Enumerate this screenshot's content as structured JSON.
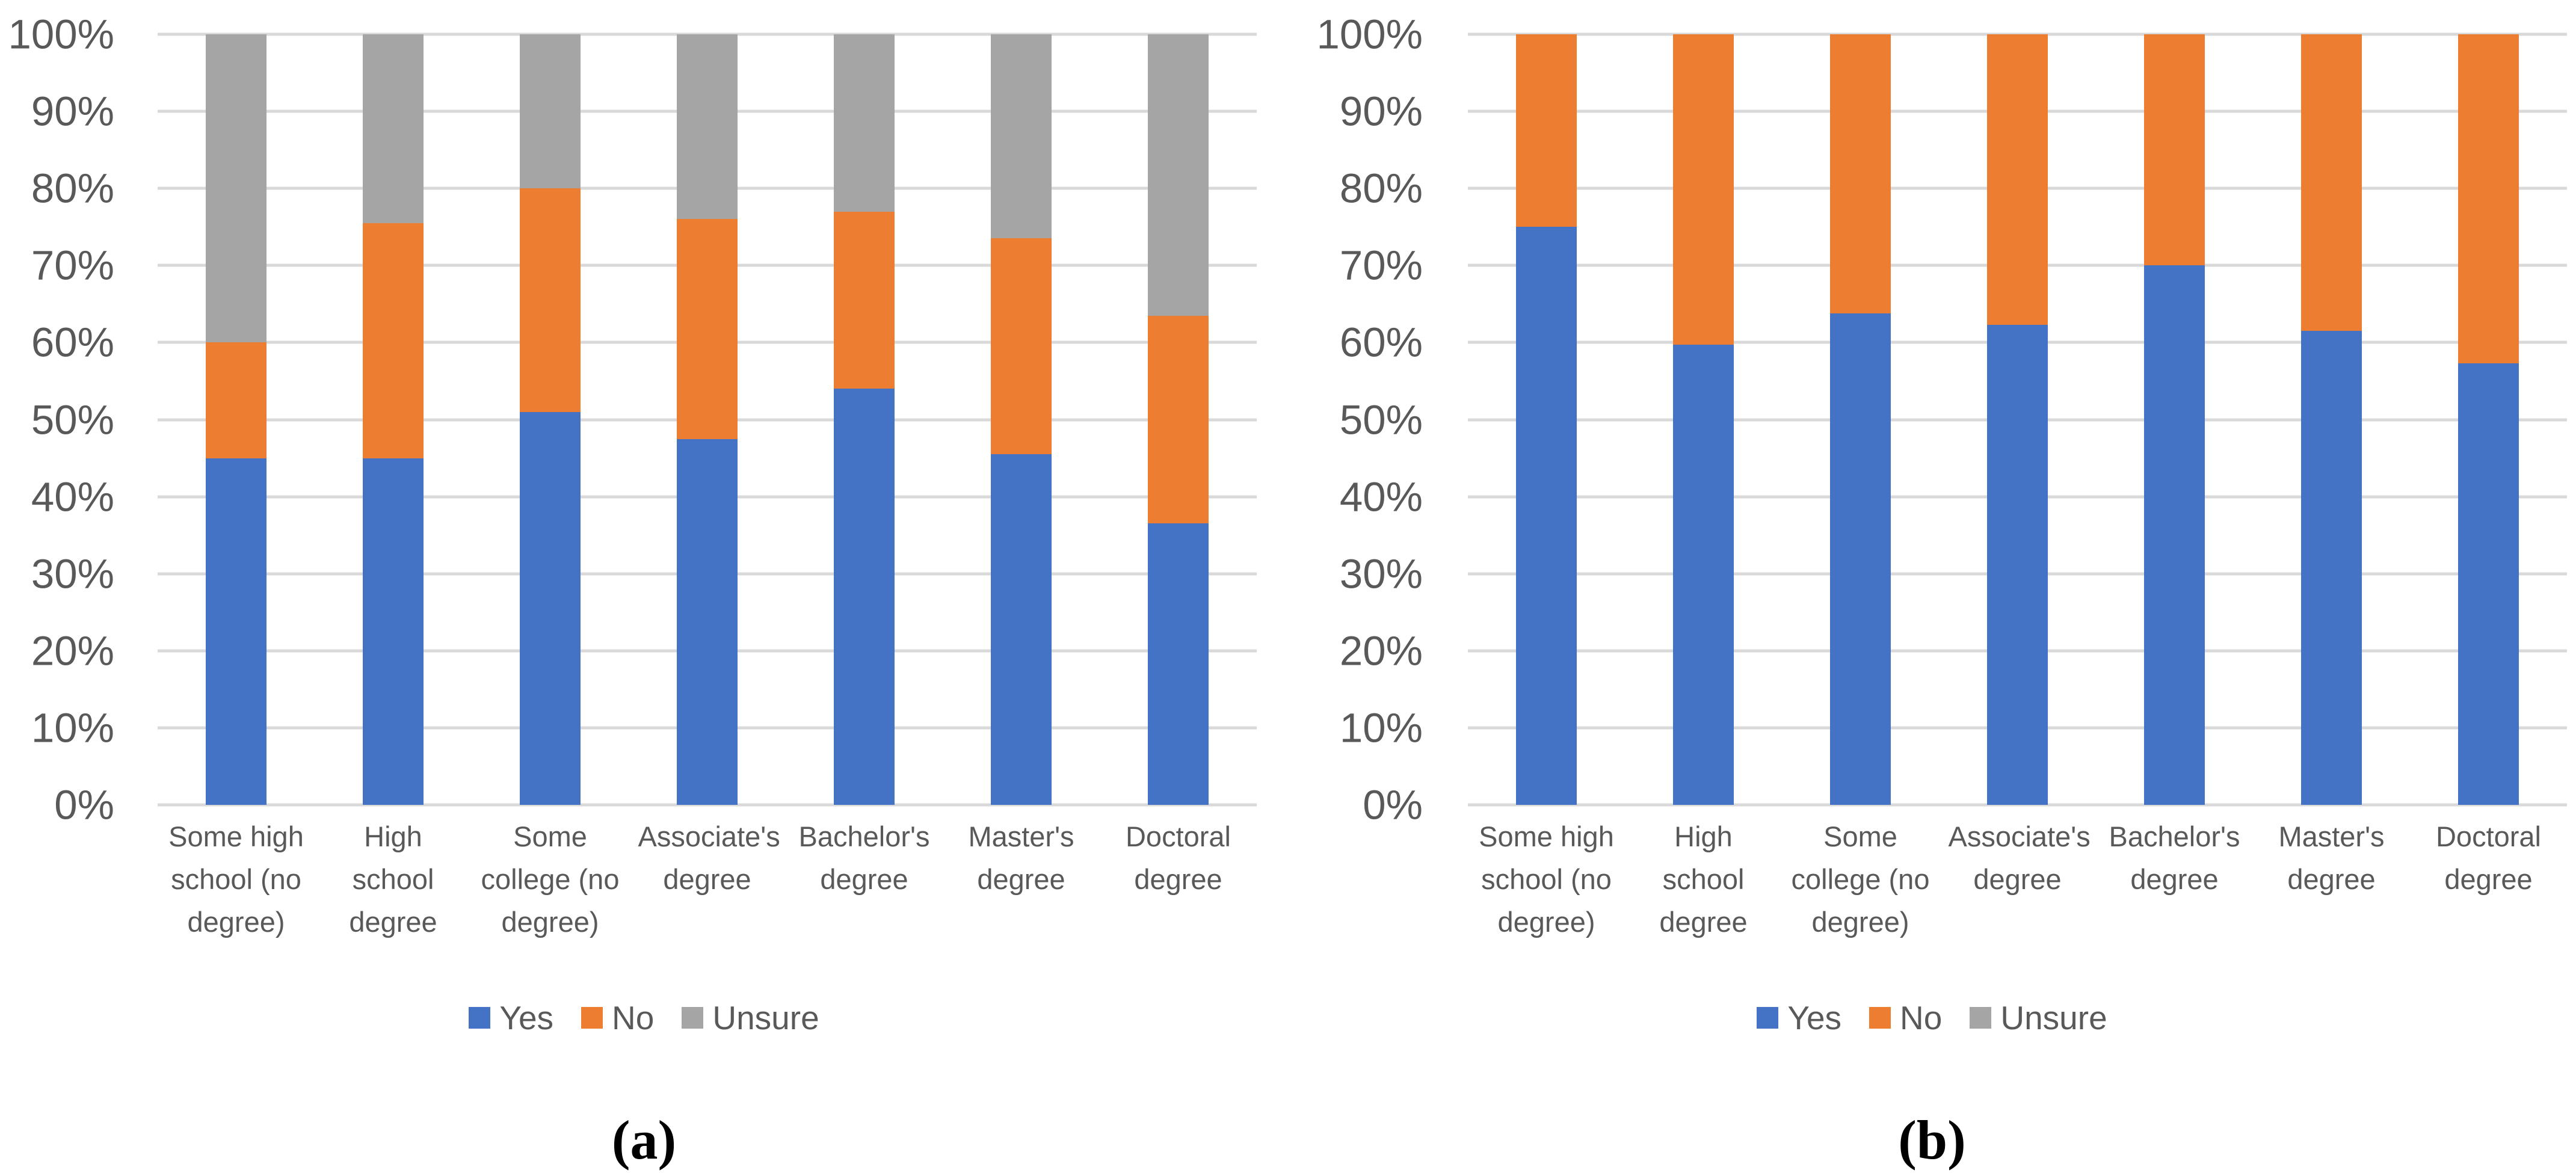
{
  "styles": {
    "background": "#FFFFFF",
    "grid_color": "#D9D9D9",
    "text_color": "#595959",
    "series_colors": {
      "yes": "#4472C4",
      "no": "#ED7D31",
      "unsure": "#A5A5A5"
    }
  },
  "chart_data": [
    {
      "type": "bar",
      "stacked": true,
      "units": "percent",
      "caption": "(a)",
      "title": "",
      "xlabel": "",
      "ylabel": "",
      "ylim": [
        0,
        100
      ],
      "grid": "horizontal",
      "legend_position": "bottom",
      "y_ticks": [
        "0%",
        "10%",
        "20%",
        "30%",
        "40%",
        "50%",
        "60%",
        "70%",
        "80%",
        "90%",
        "100%"
      ],
      "categories": [
        "Some high school (no degree)",
        "High school degree",
        "Some college (no degree)",
        "Associate's degree",
        "Bachelor's degree",
        "Master's degree",
        "Doctoral degree"
      ],
      "series": [
        {
          "name": "Yes",
          "color": "#4472C4",
          "values": [
            45,
            45,
            51,
            47.5,
            54,
            45.5,
            36.5
          ]
        },
        {
          "name": "No",
          "color": "#ED7D31",
          "values": [
            15,
            30.5,
            29,
            28.5,
            23,
            28,
            27
          ]
        },
        {
          "name": "Unsure",
          "color": "#A5A5A5",
          "values": [
            40,
            24.5,
            20,
            24,
            23,
            26.5,
            36.5
          ]
        }
      ]
    },
    {
      "type": "bar",
      "stacked": true,
      "units": "percent",
      "caption": "(b)",
      "title": "",
      "xlabel": "",
      "ylabel": "",
      "ylim": [
        0,
        100
      ],
      "grid": "horizontal",
      "legend_position": "bottom",
      "y_ticks": [
        "0%",
        "10%",
        "20%",
        "30%",
        "40%",
        "50%",
        "60%",
        "70%",
        "80%",
        "90%",
        "100%"
      ],
      "categories": [
        "Some high school (no degree)",
        "High school degree",
        "Some college (no degree)",
        "Associate's degree",
        "Bachelor's degree",
        "Master's degree",
        "Doctoral degree"
      ],
      "series": [
        {
          "name": "Yes",
          "color": "#4472C4",
          "values": [
            75,
            59.7,
            63.8,
            62.3,
            70,
            61.5,
            57.3
          ]
        },
        {
          "name": "No",
          "color": "#ED7D31",
          "values": [
            25,
            40.3,
            36.2,
            37.7,
            30,
            38.5,
            42.7
          ]
        },
        {
          "name": "Unsure",
          "color": "#A5A5A5",
          "values": [
            0,
            0,
            0,
            0,
            0,
            0,
            0
          ]
        }
      ]
    }
  ]
}
